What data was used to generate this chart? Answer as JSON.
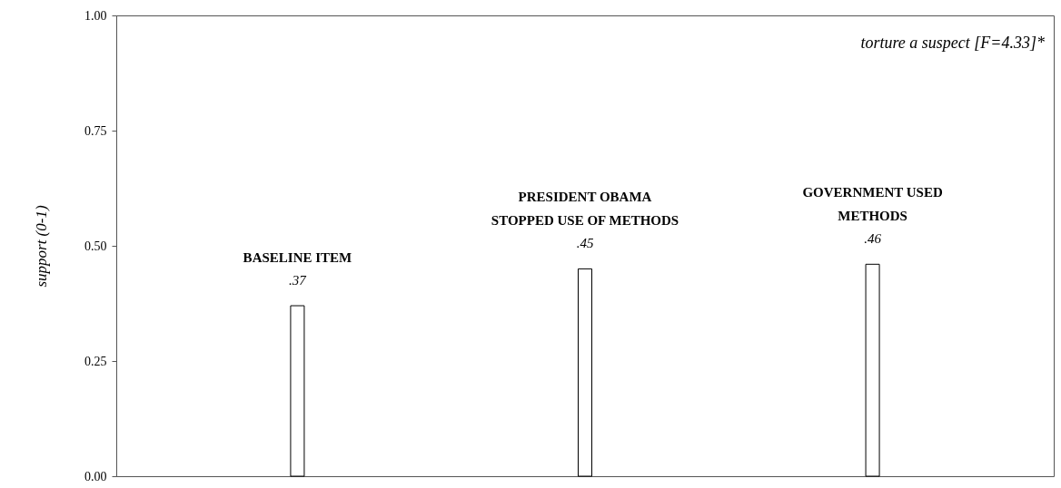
{
  "chart_data": {
    "type": "bar",
    "ylabel": "support (0-1)",
    "categories": [
      "BASELINE ITEM",
      "PRESIDENT OBAMA\nSTOPPED USE OF METHODS",
      "GOVERNMENT USED\nMETHODS"
    ],
    "values": [
      0.37,
      0.45,
      0.46
    ],
    "value_labels": [
      ".37",
      ".45",
      ".46"
    ],
    "color": "#ffffff",
    "ylim": [
      0,
      1
    ],
    "yticks": [
      {
        "value": 0,
        "label": "0.00"
      },
      {
        "value": 0.25,
        "label": "0.25"
      },
      {
        "value": 0.5,
        "label": "0.50"
      },
      {
        "value": 0.75,
        "label": "0.75"
      },
      {
        "value": 1,
        "label": "1.00"
      }
    ],
    "tick_labels": "y",
    "annotations": [
      "torture a suspect [F=4.33]*"
    ]
  }
}
